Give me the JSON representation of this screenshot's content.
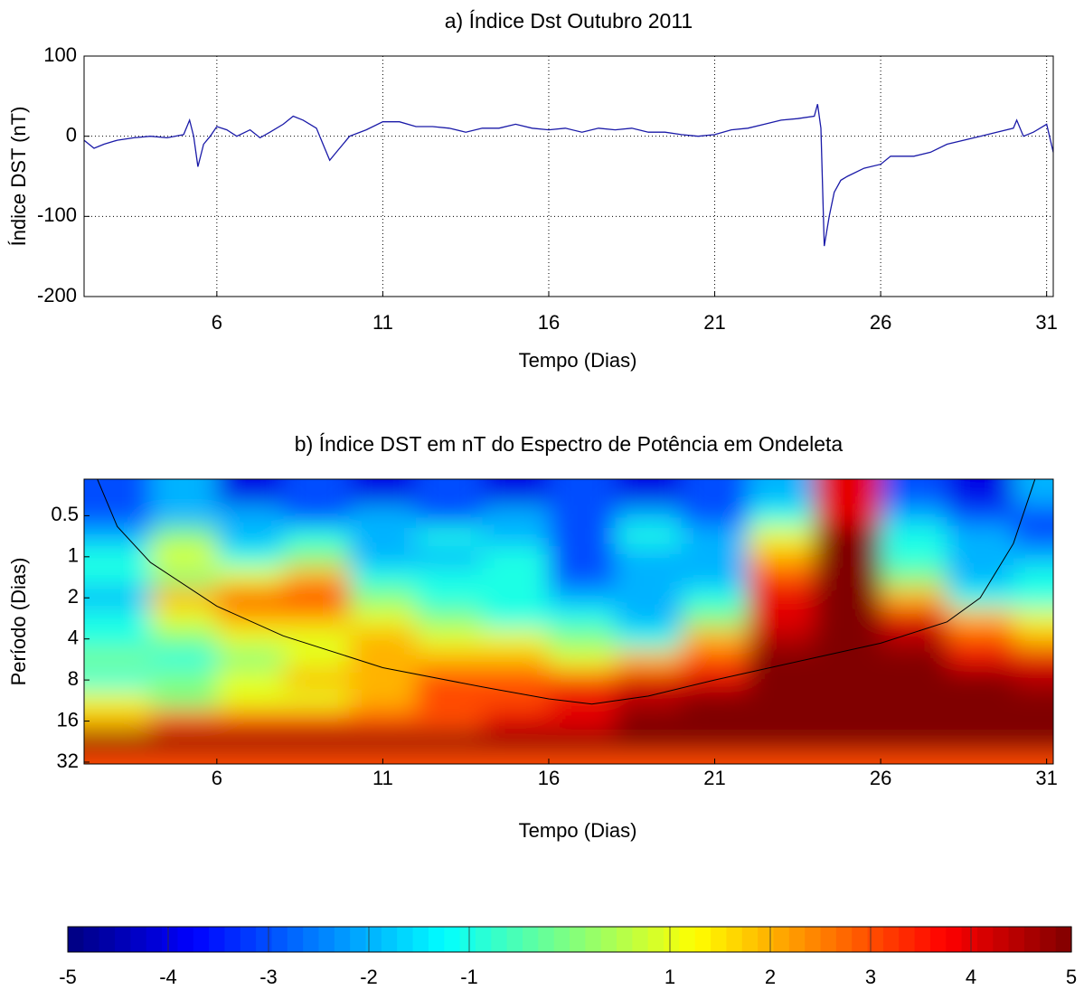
{
  "chart_data": [
    {
      "type": "line",
      "title": "a) Índice Dst Outubro 2011",
      "xlabel": "Tempo  (Dias)",
      "ylabel": "Índice DST (nT)",
      "xlim": [
        2,
        31.2
      ],
      "xticks": [
        6,
        11,
        16,
        21,
        26,
        31
      ],
      "ylim": [
        -200,
        100
      ],
      "yticks": [
        -200,
        -100,
        0,
        100
      ],
      "grid": true,
      "color": "#1a1aa8",
      "x": [
        2.0,
        2.3,
        2.6,
        3.0,
        3.5,
        4.0,
        4.5,
        5.0,
        5.18,
        5.3,
        5.43,
        5.6,
        5.8,
        6.0,
        6.3,
        6.6,
        7.0,
        7.3,
        7.6,
        8.0,
        8.3,
        8.6,
        9.0,
        9.2,
        9.4,
        9.6,
        10.0,
        10.5,
        11.0,
        11.5,
        12.0,
        12.5,
        13.0,
        13.5,
        14.0,
        14.5,
        15.0,
        15.5,
        16.0,
        16.5,
        17.0,
        17.5,
        18.0,
        18.5,
        19.0,
        19.5,
        20.0,
        20.5,
        21.0,
        21.5,
        22.0,
        22.5,
        23.0,
        23.5,
        24.0,
        24.1,
        24.2,
        24.3,
        24.45,
        24.6,
        24.8,
        25.0,
        25.5,
        26.0,
        26.3,
        27.0,
        27.5,
        28.0,
        28.5,
        29.0,
        29.5,
        30.0,
        30.1,
        30.3,
        30.6,
        31.0,
        31.2
      ],
      "values": [
        -5,
        -15,
        -10,
        -5,
        -2,
        0,
        -2,
        2,
        20,
        0,
        -38,
        -10,
        0,
        12,
        8,
        0,
        8,
        -2,
        5,
        15,
        25,
        20,
        10,
        -10,
        -30,
        -20,
        0,
        8,
        18,
        18,
        12,
        12,
        10,
        5,
        10,
        10,
        15,
        10,
        8,
        10,
        5,
        10,
        8,
        10,
        5,
        5,
        2,
        0,
        2,
        8,
        10,
        15,
        20,
        22,
        25,
        40,
        10,
        -137,
        -100,
        -70,
        -55,
        -50,
        -40,
        -35,
        -25,
        -25,
        -20,
        -10,
        -5,
        0,
        5,
        10,
        20,
        0,
        5,
        15,
        -20
      ]
    },
    {
      "type": "heatmap",
      "title": "b) Índice DST em nT do Espectro de Potência em Ondeleta",
      "xlabel": "Tempo (Dias)",
      "ylabel": "Período (Dias)",
      "xlim": [
        2,
        31.2
      ],
      "xticks": [
        6,
        11,
        16,
        21,
        26,
        31
      ],
      "ylim": [
        0.27,
        33
      ],
      "yticks": [
        0.5,
        1,
        2,
        4,
        8,
        16,
        32
      ],
      "log_y": true,
      "colormap": "jet",
      "clim": [
        -5,
        5
      ],
      "cticks": [
        -5,
        -4,
        -3,
        -2,
        -1,
        1,
        2,
        3,
        4,
        5
      ],
      "x": [
        3,
        5,
        7,
        9,
        11,
        13,
        15,
        17,
        19,
        21,
        23,
        25,
        27,
        29,
        31
      ],
      "y": [
        0.35,
        0.5,
        0.7,
        1,
        1.4,
        2,
        2.8,
        4,
        5.7,
        8,
        11,
        16,
        23,
        32
      ],
      "z": [
        [
          -3,
          -2,
          -4,
          -3,
          -4,
          -3,
          -4,
          -3,
          -4,
          -3,
          -2,
          4,
          -3,
          -4,
          -2
        ],
        [
          -3,
          -2,
          -2,
          -3,
          -2,
          -3,
          -2,
          -3,
          -2,
          -3,
          -1,
          4,
          -2,
          -3,
          -3
        ],
        [
          -2,
          0,
          -2,
          -1,
          -2,
          -1,
          -2,
          -3,
          -1,
          -2,
          1,
          5,
          -1,
          -2,
          -3
        ],
        [
          -1,
          1,
          -1,
          0,
          -2,
          -2,
          -1,
          -3,
          -2,
          -2,
          2,
          5,
          -1,
          -2,
          -2
        ],
        [
          -1,
          0,
          1,
          2,
          -1,
          -1,
          -1,
          -3,
          -2,
          -2,
          3,
          5,
          0,
          -2,
          -1
        ],
        [
          -2,
          2,
          3,
          3.5,
          0,
          -1,
          -1,
          -2,
          -2,
          -1,
          4,
          5,
          2,
          -1,
          -1
        ],
        [
          -1,
          1,
          2,
          2,
          1,
          0,
          -1,
          -1,
          -2,
          0,
          4,
          5,
          4,
          2,
          1
        ],
        [
          -1,
          0,
          1,
          1,
          2,
          1,
          1,
          0,
          -1,
          2,
          4.5,
          5,
          4.5,
          3,
          2
        ],
        [
          0,
          -1,
          0,
          1,
          2,
          2,
          2,
          1,
          2,
          3,
          5,
          5,
          5,
          4,
          4
        ],
        [
          -1,
          0,
          1,
          2,
          2,
          3,
          3,
          3,
          4,
          4,
          5,
          5,
          5,
          5,
          4.5
        ],
        [
          1,
          0,
          1,
          1,
          2,
          3,
          3,
          4,
          4.5,
          5,
          5,
          5,
          5,
          5,
          5
        ],
        [
          2,
          3,
          3,
          3,
          3,
          3,
          4,
          4,
          5,
          5,
          5,
          5,
          5,
          5,
          5
        ],
        [
          5,
          5,
          5,
          5,
          5,
          5,
          5,
          5,
          5,
          5,
          5,
          5,
          5,
          5,
          5
        ],
        [
          3,
          3,
          3,
          3,
          3,
          3,
          3,
          3,
          3,
          3,
          3,
          3,
          3,
          3,
          3
        ]
      ],
      "coi": {
        "x": [
          2.4,
          3,
          4,
          6,
          8,
          11,
          14,
          16,
          17.3,
          19,
          21,
          24,
          26,
          28,
          29,
          30,
          30.65
        ],
        "y": [
          0.27,
          0.6,
          1.1,
          2.3,
          3.8,
          6.5,
          9,
          11,
          12,
          10.5,
          8,
          5.5,
          4.3,
          3,
          2,
          0.8,
          0.27
        ]
      }
    }
  ]
}
